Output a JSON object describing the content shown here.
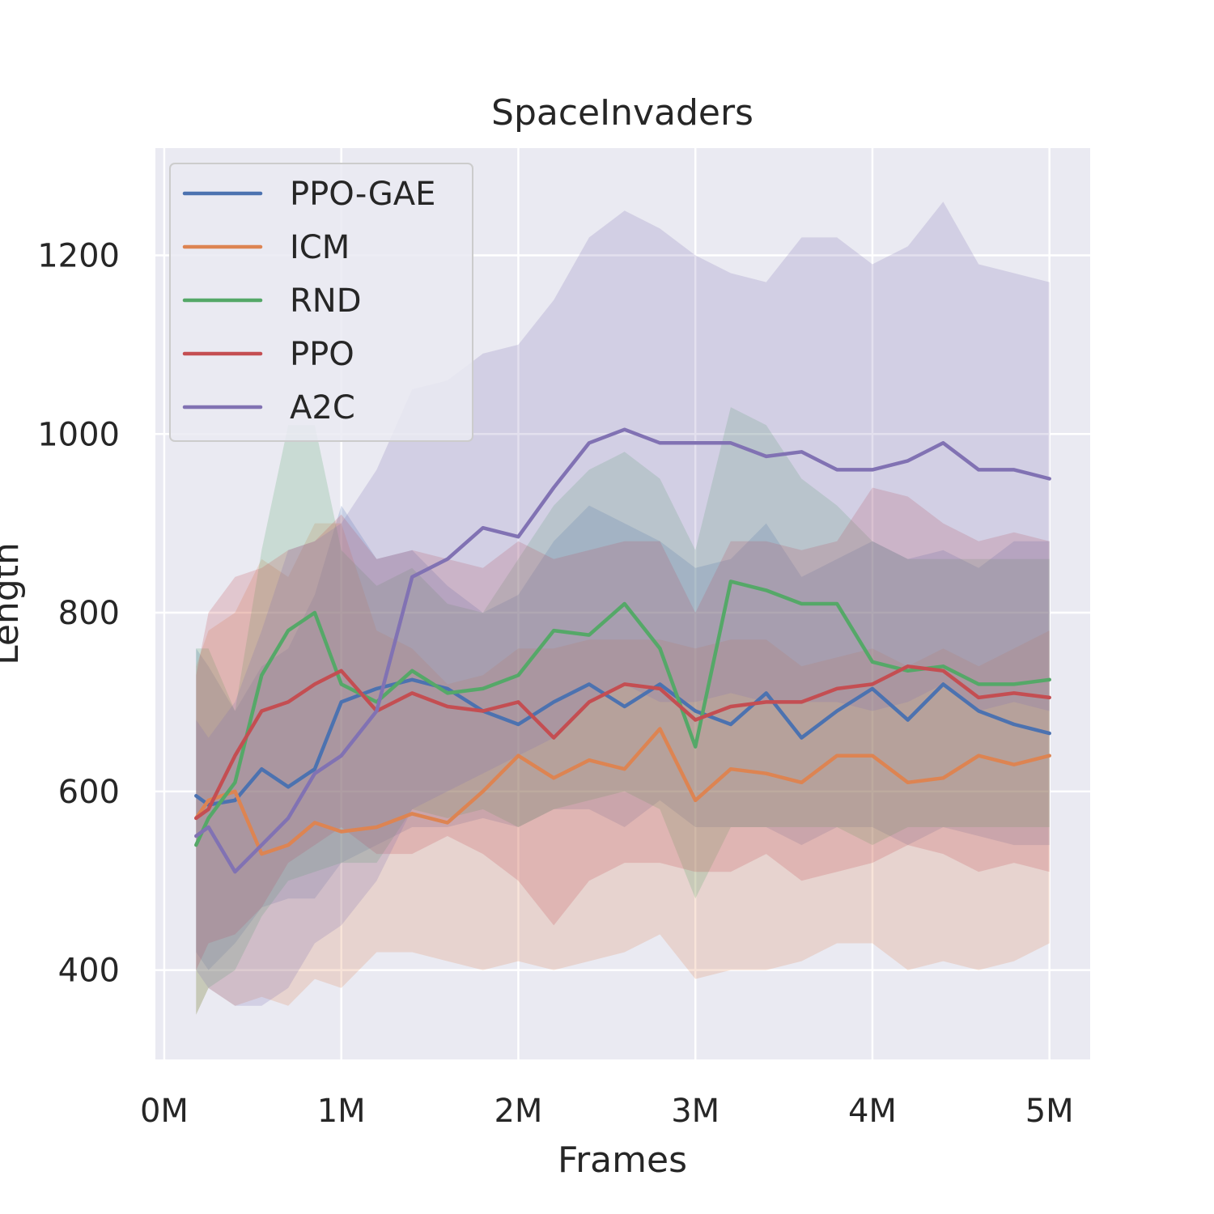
{
  "chart_data": {
    "type": "line",
    "title": "SpaceInvaders",
    "xlabel": "Frames",
    "ylabel": "Length",
    "xlim": [
      -50000,
      5230000
    ],
    "ylim": [
      300,
      1320
    ],
    "x_ticks": [
      {
        "value": 0,
        "label": "0M"
      },
      {
        "value": 1000000,
        "label": "1M"
      },
      {
        "value": 2000000,
        "label": "2M"
      },
      {
        "value": 3000000,
        "label": "3M"
      },
      {
        "value": 4000000,
        "label": "4M"
      },
      {
        "value": 5000000,
        "label": "5M"
      }
    ],
    "y_ticks": [
      {
        "value": 400,
        "label": "400"
      },
      {
        "value": 600,
        "label": "600"
      },
      {
        "value": 800,
        "label": "800"
      },
      {
        "value": 1000,
        "label": "1000"
      },
      {
        "value": 1200,
        "label": "1200"
      }
    ],
    "grid": true,
    "legend_position": "top-left",
    "x": [
      180000,
      250000,
      400000,
      550000,
      700000,
      850000,
      1000000,
      1200000,
      1400000,
      1600000,
      1800000,
      2000000,
      2200000,
      2400000,
      2600000,
      2800000,
      3000000,
      3200000,
      3400000,
      3600000,
      3800000,
      4000000,
      4200000,
      4400000,
      4600000,
      4800000,
      5000000
    ],
    "series": [
      {
        "name": "PPO-GAE",
        "color": "#4c72b0",
        "values": [
          595,
          585,
          590,
          625,
          605,
          625,
          700,
          715,
          725,
          715,
          690,
          675,
          700,
          720,
          695,
          720,
          690,
          675,
          710,
          660,
          690,
          715,
          680,
          720,
          690,
          675,
          665
        ],
        "upper": [
          760,
          740,
          690,
          740,
          760,
          820,
          920,
          860,
          870,
          830,
          800,
          820,
          880,
          920,
          900,
          880,
          850,
          860,
          900,
          840,
          860,
          880,
          860,
          870,
          850,
          880,
          880
        ],
        "lower": [
          420,
          400,
          430,
          470,
          480,
          480,
          520,
          540,
          560,
          560,
          570,
          560,
          580,
          580,
          560,
          590,
          560,
          560,
          560,
          540,
          560,
          560,
          540,
          560,
          550,
          540,
          540
        ]
      },
      {
        "name": "ICM",
        "color": "#dd8452",
        "values": [
          570,
          590,
          600,
          530,
          540,
          565,
          555,
          560,
          575,
          565,
          600,
          640,
          615,
          635,
          625,
          670,
          590,
          625,
          620,
          610,
          640,
          640,
          610,
          615,
          640,
          630,
          640
        ],
        "upper": [
          740,
          780,
          800,
          860,
          840,
          900,
          900,
          780,
          760,
          720,
          730,
          760,
          760,
          770,
          770,
          770,
          760,
          770,
          770,
          740,
          750,
          760,
          740,
          760,
          740,
          760,
          780
        ],
        "lower": [
          350,
          380,
          360,
          370,
          360,
          390,
          380,
          420,
          420,
          410,
          400,
          410,
          400,
          410,
          420,
          440,
          390,
          400,
          400,
          410,
          430,
          430,
          400,
          410,
          400,
          410,
          430
        ]
      },
      {
        "name": "RND",
        "color": "#55a868",
        "values": [
          540,
          570,
          610,
          730,
          780,
          800,
          720,
          700,
          735,
          710,
          715,
          730,
          780,
          775,
          810,
          760,
          650,
          835,
          825,
          810,
          810,
          745,
          735,
          740,
          720,
          720,
          725
        ],
        "upper": [
          760,
          760,
          690,
          870,
          1010,
          1010,
          870,
          830,
          850,
          810,
          800,
          860,
          920,
          960,
          980,
          950,
          870,
          1030,
          1010,
          950,
          920,
          880,
          860,
          860,
          860,
          860,
          860
        ],
        "lower": [
          350,
          380,
          400,
          460,
          500,
          510,
          520,
          520,
          580,
          570,
          580,
          560,
          580,
          590,
          600,
          580,
          480,
          560,
          560,
          560,
          560,
          540,
          560,
          560,
          560,
          560,
          560
        ]
      },
      {
        "name": "PPO",
        "color": "#c44e52",
        "values": [
          570,
          580,
          640,
          690,
          700,
          720,
          735,
          690,
          710,
          695,
          690,
          700,
          660,
          700,
          720,
          715,
          680,
          695,
          700,
          700,
          715,
          720,
          740,
          735,
          705,
          710,
          705
        ],
        "upper": [
          730,
          800,
          840,
          850,
          870,
          880,
          910,
          860,
          870,
          860,
          850,
          880,
          860,
          870,
          880,
          880,
          800,
          880,
          880,
          870,
          880,
          940,
          930,
          900,
          880,
          890,
          880
        ],
        "lower": [
          400,
          430,
          440,
          470,
          520,
          540,
          560,
          530,
          530,
          550,
          530,
          500,
          450,
          500,
          520,
          520,
          510,
          510,
          530,
          500,
          510,
          520,
          540,
          530,
          510,
          520,
          510
        ]
      },
      {
        "name": "A2C",
        "color": "#8172b3",
        "values": [
          550,
          560,
          510,
          540,
          570,
          620,
          640,
          690,
          840,
          860,
          895,
          885,
          940,
          990,
          1005,
          990,
          990,
          990,
          975,
          980,
          960,
          960,
          970,
          990,
          960,
          960,
          950
        ],
        "upper": [
          680,
          660,
          700,
          780,
          870,
          880,
          900,
          960,
          1050,
          1060,
          1090,
          1100,
          1150,
          1220,
          1250,
          1230,
          1200,
          1180,
          1170,
          1220,
          1220,
          1190,
          1210,
          1260,
          1190,
          1180,
          1170
        ],
        "lower": [
          400,
          380,
          360,
          360,
          380,
          430,
          450,
          500,
          580,
          600,
          620,
          640,
          660,
          700,
          720,
          700,
          700,
          710,
          700,
          700,
          700,
          690,
          700,
          720,
          690,
          700,
          690
        ]
      }
    ]
  }
}
